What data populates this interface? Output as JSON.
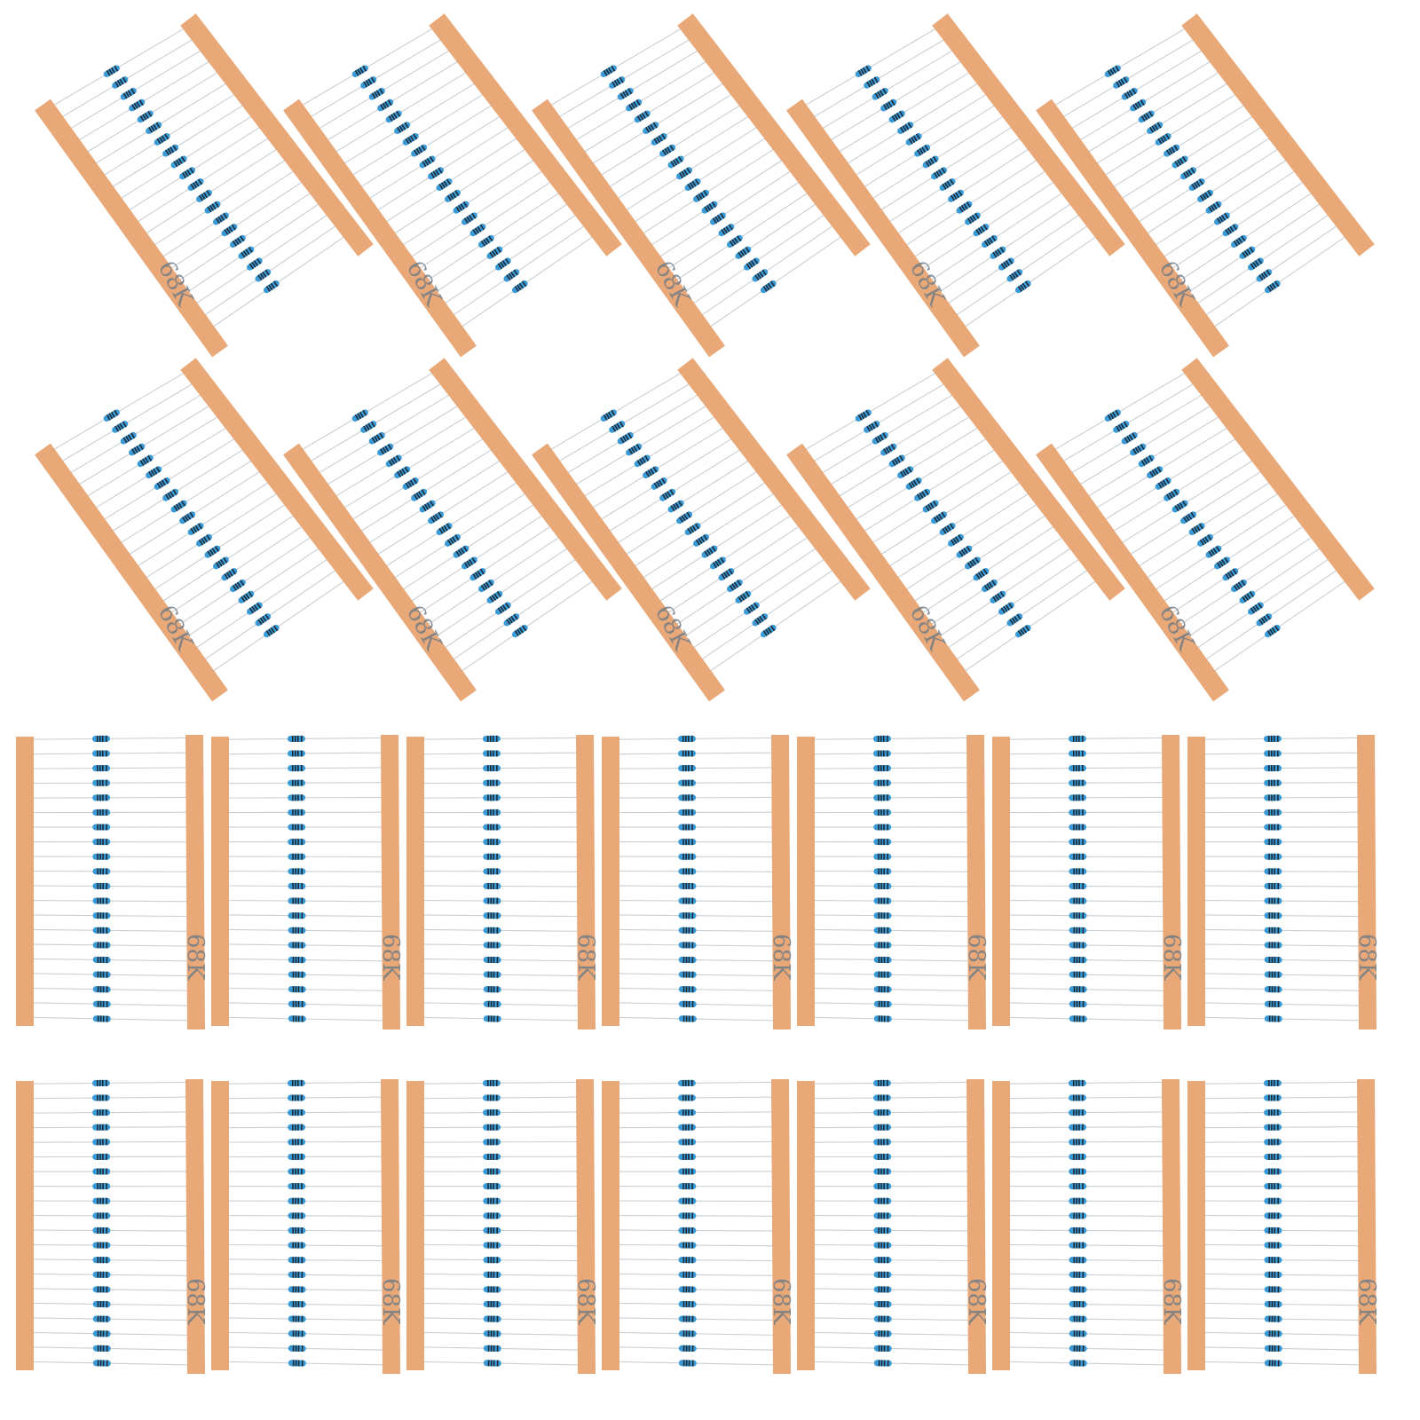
{
  "photo": {
    "subject": "resistor-tape-strips",
    "tape_label": "68K",
    "resistors_per_strip": 20,
    "tilted_rows": 2,
    "tilted_per_row": 5,
    "upright_rows": 2,
    "upright_per_row": 7,
    "colors": {
      "tape": "#e9a877",
      "resistor_body": "#3a9ad6",
      "resistor_band": "#1d2a36",
      "lead_wire": "#c9cfd3",
      "background": "#ffffff"
    }
  }
}
